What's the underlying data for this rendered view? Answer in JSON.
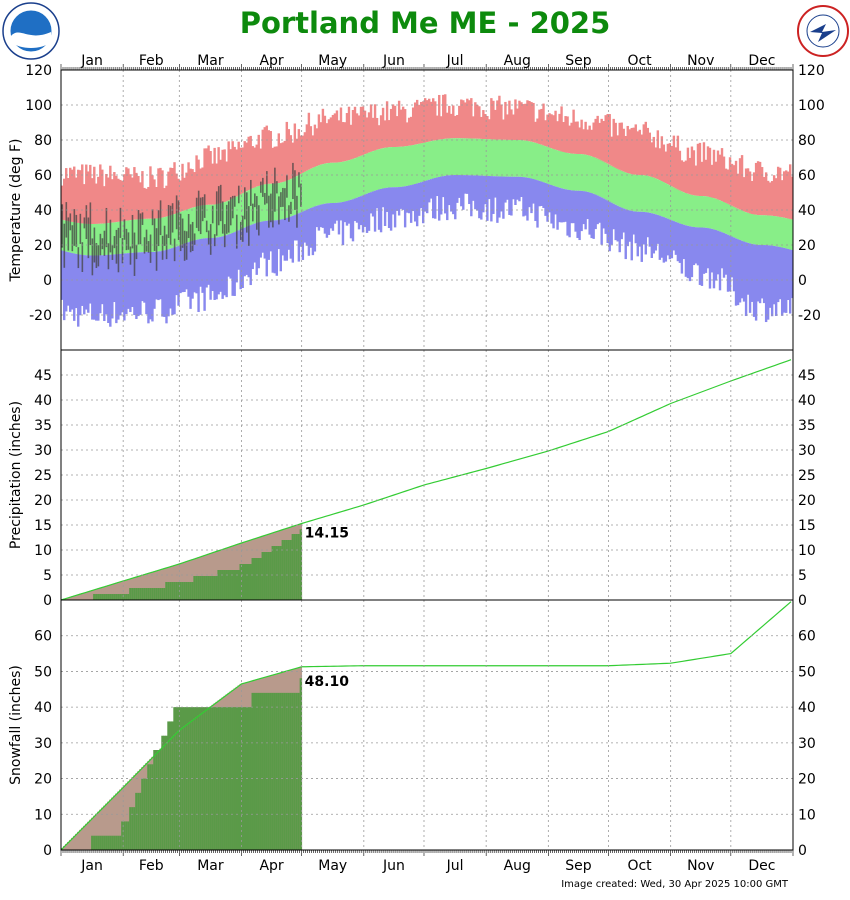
{
  "title": "Portland Me ME - 2025",
  "footer": "Image created: Wed, 30 Apr 2025 10:00 GMT",
  "logos": {
    "left": "noaa-logo",
    "right": "nws-logo"
  },
  "colors": {
    "record_high": "#f08888",
    "normal_range": "#88ee88",
    "record_low": "#8888ee",
    "observed": "#444444",
    "precip_normal": "#b89a8c",
    "precip_actual": "#5a9a48",
    "normal_line": "#33cc33",
    "title": "#0d8a0d"
  },
  "chart_data": [
    {
      "type": "bar",
      "name": "temperature",
      "ylabel": "Temperature (deg F)",
      "months": [
        "Jan",
        "Feb",
        "Mar",
        "Apr",
        "May",
        "Jun",
        "Jul",
        "Aug",
        "Sep",
        "Oct",
        "Nov",
        "Dec"
      ],
      "ylim": [
        -40,
        120
      ],
      "yticks": [
        "120",
        "100",
        "80",
        "60",
        "40",
        "20",
        "0",
        "-20"
      ],
      "through_day": 120,
      "normal_high": [
        32,
        35,
        43,
        55,
        67,
        76,
        81,
        80,
        72,
        60,
        48,
        37
      ],
      "normal_low": [
        14,
        16,
        24,
        34,
        44,
        53,
        60,
        59,
        51,
        39,
        30,
        20
      ],
      "record_high": [
        60,
        58,
        70,
        82,
        92,
        96,
        100,
        98,
        92,
        84,
        72,
        62
      ],
      "record_low": [
        -20,
        -18,
        -10,
        10,
        26,
        36,
        42,
        40,
        30,
        18,
        4,
        -16
      ],
      "grid": true
    },
    {
      "type": "line",
      "name": "precipitation",
      "ylabel": "Precipitation (inches)",
      "ylim": [
        0,
        50
      ],
      "yticks": [
        "45",
        "40",
        "35",
        "30",
        "25",
        "20",
        "15",
        "10",
        "5",
        "0"
      ],
      "normal_cumulative": [
        0,
        3.8,
        7.2,
        11.4,
        15.3,
        19.0,
        23.0,
        26.3,
        29.8,
        33.7,
        39.3,
        43.8,
        48.2
      ],
      "actual_to_date": 14.15,
      "actual_cumulative": [
        0,
        2.2,
        4.0,
        7.2,
        14.15
      ],
      "label": "14.15",
      "grid": true
    },
    {
      "type": "line",
      "name": "snowfall",
      "ylabel": "Snowfall (inches)",
      "ylim": [
        0,
        70
      ],
      "yticks": [
        "60",
        "50",
        "40",
        "30",
        "20",
        "10",
        "0"
      ],
      "normal_cumulative": [
        0,
        17.5,
        33.5,
        46.5,
        51.3,
        51.6,
        51.6,
        51.6,
        51.6,
        51.6,
        52.3,
        55.0,
        70.0
      ],
      "actual_to_date": 48.1,
      "actual_cumulative": [
        0,
        8.0,
        43.0,
        43.0,
        48.1
      ],
      "label": "48.10",
      "grid": true
    }
  ]
}
